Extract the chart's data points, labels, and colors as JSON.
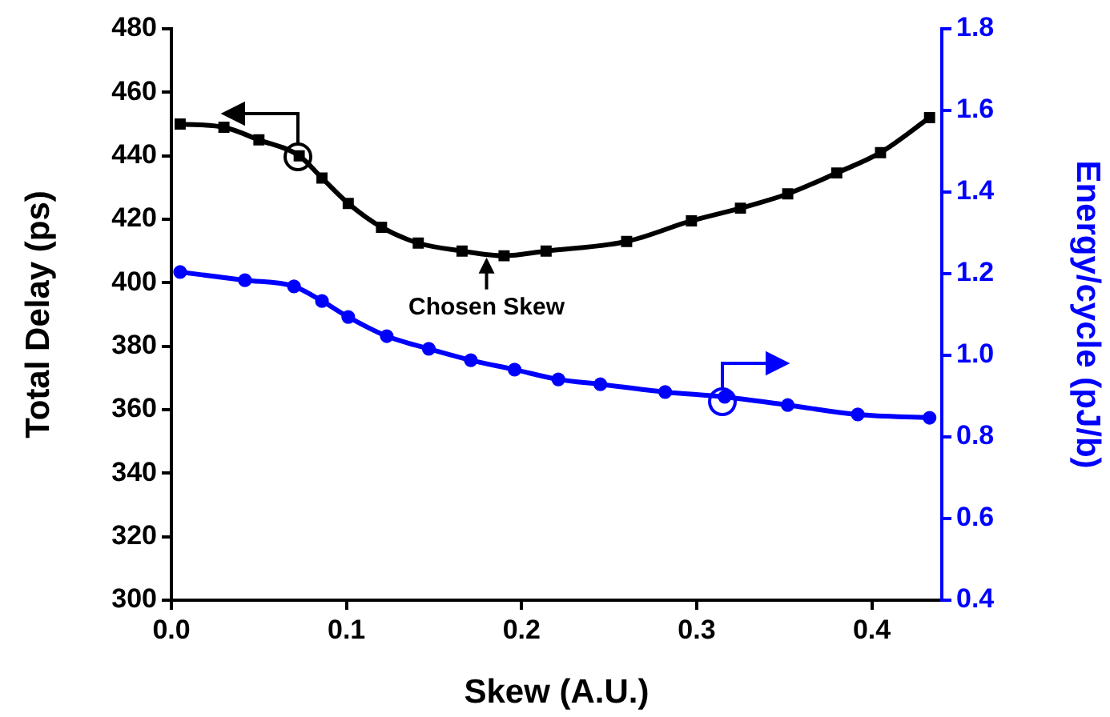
{
  "chart_data": {
    "type": "line",
    "xlabel": "Skew (A.U.)",
    "ylabel": "Total Delay (ps)",
    "y2label": "Energy/cycle (pJ/b)",
    "xlim": [
      0,
      0.44
    ],
    "xticks": [
      {
        "value": 0,
        "label": "0.0"
      },
      0.1,
      0.2,
      0.3,
      0.4
    ],
    "ylim": [
      300,
      480
    ],
    "yticks": [
      300,
      320,
      340,
      360,
      380,
      400,
      420,
      440,
      460,
      480
    ],
    "y2lim": [
      0.4,
      1.8
    ],
    "y2ticks": [
      0.4,
      0.6,
      0.8,
      {
        "value": 1,
        "label": "1.0"
      },
      1.2,
      1.4,
      1.6,
      1.8
    ],
    "grid": false,
    "legend": false,
    "series": [
      {
        "color": "#000000",
        "marker": "square",
        "x": [
          0.005,
          0.03,
          0.05,
          0.073,
          0.086,
          0.101,
          0.12,
          0.141,
          0.166,
          0.19,
          0.214,
          0.26,
          0.297,
          0.325,
          0.352,
          0.38,
          0.405,
          0.433
        ],
        "values": [
          450,
          449,
          445,
          440,
          433,
          425,
          417.5,
          412.5,
          410,
          408.5,
          410,
          413,
          419.5,
          423.5,
          428,
          434.6,
          441,
          452
        ]
      },
      {
        "color": "#0000ff",
        "marker": "circle",
        "axis": "y2",
        "x": [
          0.005,
          0.042,
          0.07,
          0.086,
          0.101,
          0.123,
          0.147,
          0.171,
          0.196,
          0.221,
          0.245,
          0.282,
          0.316,
          0.352,
          0.392,
          0.433
        ],
        "values": [
          1.204,
          1.184,
          1.169,
          1.133,
          1.094,
          1.047,
          1.016,
          0.988,
          0.965,
          0.941,
          0.929,
          0.91,
          0.898,
          0.878,
          0.855,
          0.847
        ]
      }
    ],
    "annotations": [
      {
        "text": "Chosen Skew",
        "x": 0.18,
        "y": 410
      }
    ]
  }
}
